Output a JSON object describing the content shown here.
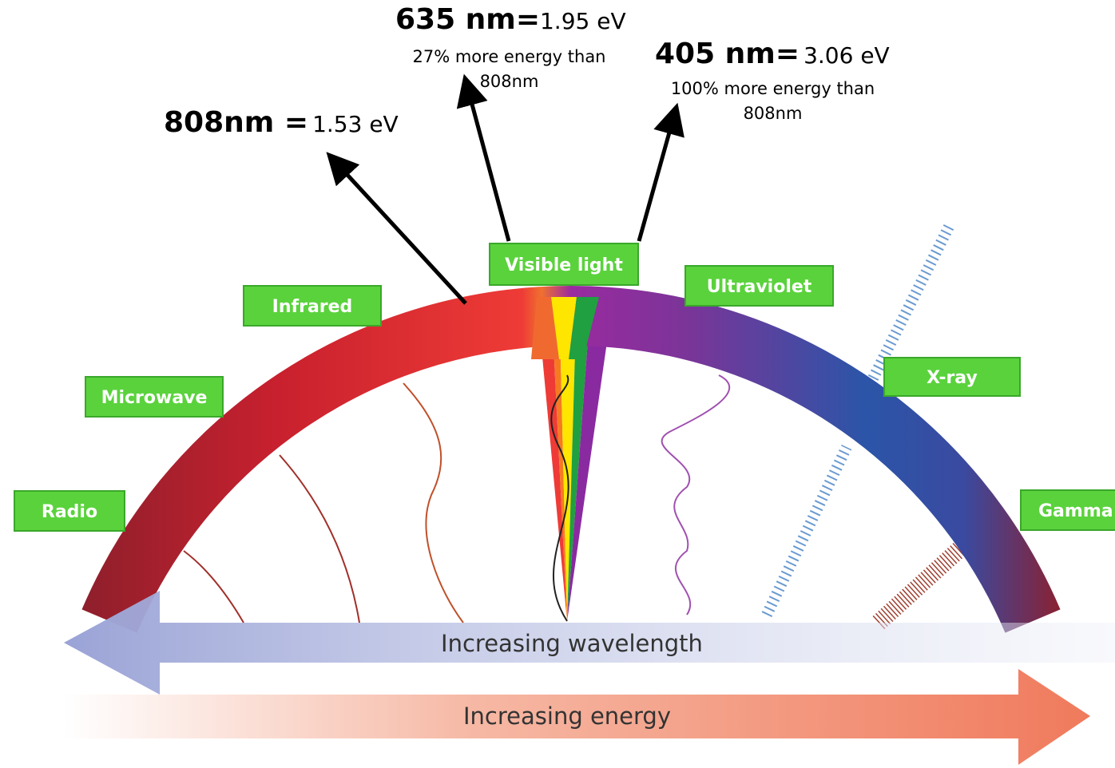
{
  "annotations": [
    {
      "label": "808nm =",
      "value": "1.53 eV"
    },
    {
      "label": "635 nm=",
      "value": "1.95 eV",
      "note": "27% more energy than 808nm"
    },
    {
      "label": "405 nm=",
      "value": "3.06 eV",
      "note": "100% more energy than 808nm"
    }
  ],
  "bands": [
    "Radio",
    "Microwave",
    "Infrared",
    "Visible light",
    "Ultraviolet",
    "X-ray",
    "Gamma"
  ],
  "arrows": {
    "wavelength": "Increasing wavelength",
    "energy": "Increasing energy"
  }
}
